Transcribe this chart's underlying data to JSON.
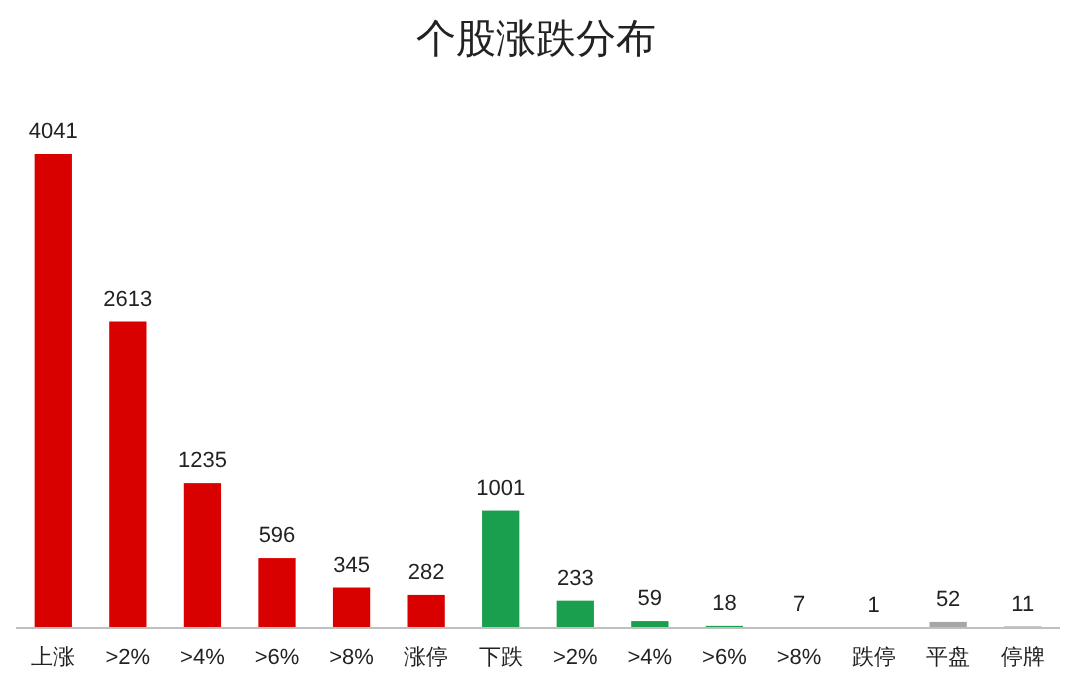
{
  "chart_data": {
    "type": "bar",
    "title": "个股涨跌分布",
    "categories": [
      "上涨",
      ">2%",
      ">4%",
      ">6%",
      ">8%",
      "涨停",
      "下跌",
      ">2%",
      ">4%",
      ">6%",
      ">8%",
      "跌停",
      "平盘",
      "停牌"
    ],
    "values": [
      4041,
      2613,
      1235,
      596,
      345,
      282,
      1001,
      233,
      59,
      18,
      7,
      1,
      52,
      11
    ],
    "colors": [
      "#d90000",
      "#d90000",
      "#d90000",
      "#d90000",
      "#d90000",
      "#d90000",
      "#1a9f4f",
      "#1a9f4f",
      "#1a9f4f",
      "#1a9f4f",
      "#1a9f4f",
      "#1a9f4f",
      "#a6a6a6",
      "#404040"
    ],
    "data_labels": true
  }
}
